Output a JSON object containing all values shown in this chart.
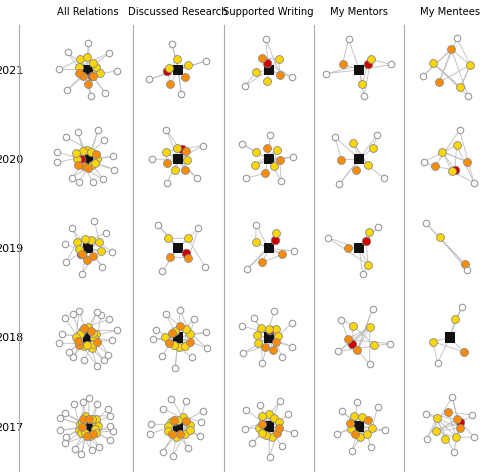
{
  "columns": [
    "All Relations",
    "Discussed Research",
    "Supported Writing",
    "My Mentors",
    "My Mentees"
  ],
  "rows": [
    "2021",
    "2020",
    "2019",
    "2018",
    "2017"
  ],
  "node_colors": {
    "undergraduate": "#FFD700",
    "graduate": "#FF8C00",
    "instructor": "#111111",
    "postdoc": "#CC0000",
    "outside": "#FFFFFF"
  },
  "edge_color": "#BBBBBB",
  "background": "#FFFFFF",
  "networks": {
    "2021_0": {
      "instructor": 1,
      "postdoc": 1,
      "undergrad": 6,
      "grad": 4,
      "outside": 8,
      "inner_r": 0.28,
      "outer_r": 0.72,
      "peer_edges": 6
    },
    "2021_1": {
      "instructor": 1,
      "postdoc": 1,
      "undergrad": 3,
      "grad": 2,
      "outside": 4,
      "inner_r": 0.32,
      "outer_r": 0.72,
      "peer_edges": 2
    },
    "2021_2": {
      "instructor": 1,
      "postdoc": 1,
      "undergrad": 3,
      "grad": 2,
      "outside": 3,
      "inner_r": 0.32,
      "outer_r": 0.72,
      "peer_edges": 2
    },
    "2021_3": {
      "instructor": 1,
      "postdoc": 1,
      "undergrad": 2,
      "grad": 1,
      "outside": 4,
      "inner_r": 0.38,
      "outer_r": 0.78,
      "peer_edges": 1
    },
    "2021_4": {
      "instructor": 0,
      "postdoc": 0,
      "undergrad": 3,
      "grad": 2,
      "outside": 3,
      "inner_r": 0.42,
      "outer_r": 0.82,
      "peer_edges": 3
    },
    "2020_0": {
      "instructor": 1,
      "postdoc": 1,
      "undergrad": 8,
      "grad": 4,
      "outside": 12,
      "inner_r": 0.26,
      "outer_r": 0.7,
      "peer_edges": 8
    },
    "2020_1": {
      "instructor": 1,
      "postdoc": 1,
      "undergrad": 4,
      "grad": 3,
      "outside": 5,
      "inner_r": 0.3,
      "outer_r": 0.72,
      "peer_edges": 3
    },
    "2020_2": {
      "instructor": 1,
      "postdoc": 0,
      "undergrad": 4,
      "grad": 3,
      "outside": 5,
      "inner_r": 0.3,
      "outer_r": 0.72,
      "peer_edges": 3
    },
    "2020_3": {
      "instructor": 1,
      "postdoc": 0,
      "undergrad": 3,
      "grad": 2,
      "outside": 4,
      "inner_r": 0.36,
      "outer_r": 0.76,
      "peer_edges": 2
    },
    "2020_4": {
      "instructor": 0,
      "postdoc": 1,
      "undergrad": 3,
      "grad": 2,
      "outside": 3,
      "inner_r": 0.36,
      "outer_r": 0.76,
      "peer_edges": 3
    },
    "2019_0": {
      "instructor": 1,
      "postdoc": 1,
      "undergrad": 6,
      "grad": 3,
      "outside": 8,
      "inner_r": 0.28,
      "outer_r": 0.7,
      "peer_edges": 5
    },
    "2019_1": {
      "instructor": 1,
      "postdoc": 1,
      "undergrad": 2,
      "grad": 2,
      "outside": 4,
      "inner_r": 0.34,
      "outer_r": 0.74,
      "peer_edges": 2
    },
    "2019_2": {
      "instructor": 1,
      "postdoc": 1,
      "undergrad": 2,
      "grad": 2,
      "outside": 3,
      "inner_r": 0.34,
      "outer_r": 0.74,
      "peer_edges": 2
    },
    "2019_3": {
      "instructor": 1,
      "postdoc": 1,
      "undergrad": 2,
      "grad": 1,
      "outside": 3,
      "inner_r": 0.38,
      "outer_r": 0.76,
      "peer_edges": 1
    },
    "2019_4": {
      "instructor": 0,
      "postdoc": 0,
      "undergrad": 1,
      "grad": 1,
      "outside": 2,
      "inner_r": 0.44,
      "outer_r": 0.82,
      "peer_edges": 1
    },
    "2018_0": {
      "instructor": 1,
      "postdoc": 0,
      "undergrad": 11,
      "grad": 5,
      "outside": 16,
      "inner_r": 0.24,
      "outer_r": 0.68,
      "peer_edges": 10
    },
    "2018_1": {
      "instructor": 1,
      "postdoc": 0,
      "undergrad": 7,
      "grad": 4,
      "outside": 10,
      "inner_r": 0.26,
      "outer_r": 0.7,
      "peer_edges": 6
    },
    "2018_2": {
      "instructor": 1,
      "postdoc": 1,
      "undergrad": 6,
      "grad": 3,
      "outside": 8,
      "inner_r": 0.28,
      "outer_r": 0.7,
      "peer_edges": 5
    },
    "2018_3": {
      "instructor": 0,
      "postdoc": 1,
      "undergrad": 3,
      "grad": 2,
      "outside": 5,
      "inner_r": 0.34,
      "outer_r": 0.74,
      "peer_edges": 2
    },
    "2018_4": {
      "instructor": 1,
      "postdoc": 0,
      "undergrad": 2,
      "grad": 1,
      "outside": 2,
      "inner_r": 0.4,
      "outer_r": 0.78,
      "peer_edges": 1
    },
    "2017_0": {
      "instructor": 1,
      "postdoc": 1,
      "undergrad": 13,
      "grad": 5,
      "outside": 18,
      "inner_r": 0.22,
      "outer_r": 0.66,
      "peer_edges": 12
    },
    "2017_1": {
      "instructor": 1,
      "postdoc": 1,
      "undergrad": 9,
      "grad": 4,
      "outside": 11,
      "inner_r": 0.24,
      "outer_r": 0.68,
      "peer_edges": 8
    },
    "2017_2": {
      "instructor": 1,
      "postdoc": 0,
      "undergrad": 8,
      "grad": 3,
      "outside": 9,
      "inner_r": 0.26,
      "outer_r": 0.68,
      "peer_edges": 6
    },
    "2017_3": {
      "instructor": 1,
      "postdoc": 0,
      "undergrad": 6,
      "grad": 3,
      "outside": 7,
      "inner_r": 0.28,
      "outer_r": 0.7,
      "peer_edges": 4
    },
    "2017_4": {
      "instructor": 0,
      "postdoc": 1,
      "undergrad": 4,
      "grad": 3,
      "outside": 6,
      "inner_r": 0.32,
      "outer_r": 0.72,
      "peer_edges": 4
    }
  }
}
